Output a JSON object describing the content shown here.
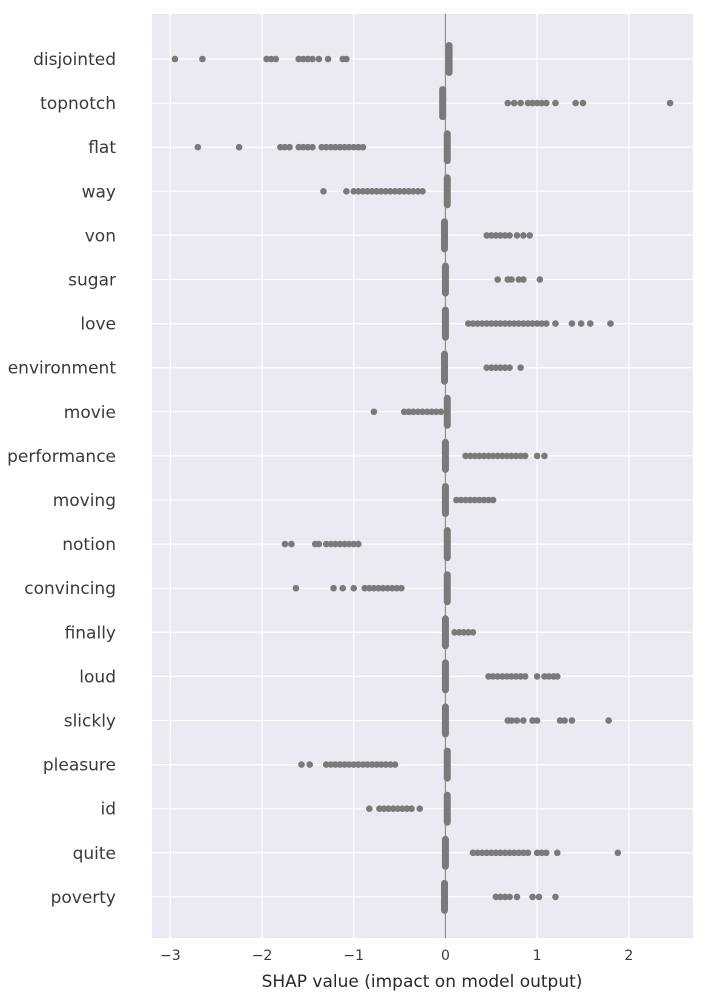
{
  "chart_data": {
    "type": "scatter",
    "subtype": "shap-summary-beeswarm",
    "title": "",
    "xlabel": "SHAP value (impact on model output)",
    "ylabel": "",
    "xlim": [
      -3.2,
      2.7
    ],
    "xticks": [
      -3,
      -2,
      -1,
      0,
      1,
      2
    ],
    "xtick_labels": [
      "−3",
      "−2",
      "−1",
      "0",
      "1",
      "2"
    ],
    "grid": true,
    "legend": "none",
    "colors": {
      "background": "#eaeaf2",
      "grid": "#ffffff",
      "point": "#7a7a7a",
      "zero_line": "#8c8c8c"
    },
    "features": [
      {
        "name": "disjointed",
        "zero": 0.04,
        "points": [
          -2.95,
          -2.65,
          -1.95,
          -1.9,
          -1.85,
          -1.6,
          -1.55,
          -1.5,
          -1.45,
          -1.38,
          -1.28,
          -1.12,
          -1.08
        ]
      },
      {
        "name": "topnotch",
        "zero": -0.03,
        "points": [
          0.68,
          0.75,
          0.82,
          0.9,
          0.95,
          1.0,
          1.05,
          1.1,
          1.2,
          1.42,
          1.5,
          2.45
        ]
      },
      {
        "name": "flat",
        "zero": 0.02,
        "points": [
          -2.7,
          -2.25,
          -1.8,
          -1.75,
          -1.7,
          -1.6,
          -1.55,
          -1.5,
          -1.45,
          -1.35,
          -1.3,
          -1.25,
          -1.2,
          -1.15,
          -1.1,
          -1.05,
          -1.0,
          -0.95,
          -0.9
        ]
      },
      {
        "name": "way",
        "zero": 0.02,
        "points": [
          -1.33,
          -1.08,
          -1.0,
          -0.95,
          -0.9,
          -0.85,
          -0.8,
          -0.75,
          -0.7,
          -0.65,
          -0.6,
          -0.55,
          -0.5,
          -0.45,
          -0.4,
          -0.35,
          -0.3,
          -0.25
        ]
      },
      {
        "name": "von",
        "zero": -0.01,
        "points": [
          0.45,
          0.5,
          0.55,
          0.6,
          0.65,
          0.7,
          0.78,
          0.85,
          0.92
        ]
      },
      {
        "name": "sugar",
        "zero": 0.0,
        "points": [
          0.57,
          0.68,
          0.72,
          0.8,
          0.85,
          1.03
        ]
      },
      {
        "name": "love",
        "zero": 0.0,
        "points": [
          0.25,
          0.3,
          0.35,
          0.4,
          0.45,
          0.5,
          0.55,
          0.6,
          0.65,
          0.7,
          0.75,
          0.8,
          0.85,
          0.9,
          0.95,
          1.0,
          1.05,
          1.1,
          1.2,
          1.38,
          1.48,
          1.58,
          1.8
        ]
      },
      {
        "name": "environment",
        "zero": -0.01,
        "points": [
          0.45,
          0.5,
          0.55,
          0.6,
          0.65,
          0.7,
          0.82
        ]
      },
      {
        "name": "movie",
        "zero": 0.02,
        "points": [
          -0.78,
          -0.45,
          -0.4,
          -0.35,
          -0.3,
          -0.25,
          -0.2,
          -0.15,
          -0.1,
          -0.05
        ]
      },
      {
        "name": "performance",
        "zero": 0.0,
        "points": [
          0.22,
          0.27,
          0.32,
          0.37,
          0.42,
          0.47,
          0.52,
          0.57,
          0.62,
          0.67,
          0.72,
          0.77,
          0.82,
          0.87,
          1.0,
          1.08
        ]
      },
      {
        "name": "moving",
        "zero": 0.0,
        "points": [
          0.12,
          0.17,
          0.22,
          0.27,
          0.32,
          0.37,
          0.42,
          0.47,
          0.52
        ]
      },
      {
        "name": "notion",
        "zero": 0.02,
        "points": [
          -1.75,
          -1.68,
          -1.42,
          -1.38,
          -1.3,
          -1.25,
          -1.2,
          -1.15,
          -1.1,
          -1.05,
          -1.0,
          -0.95
        ]
      },
      {
        "name": "convincing",
        "zero": 0.02,
        "points": [
          -1.63,
          -1.22,
          -1.12,
          -1.0,
          -0.88,
          -0.83,
          -0.78,
          -0.73,
          -0.68,
          -0.63,
          -0.58,
          -0.53,
          -0.48
        ]
      },
      {
        "name": "finally",
        "zero": 0.0,
        "points": [
          0.1,
          0.15,
          0.2,
          0.25,
          0.3
        ]
      },
      {
        "name": "loud",
        "zero": 0.0,
        "points": [
          0.47,
          0.52,
          0.57,
          0.62,
          0.67,
          0.72,
          0.77,
          0.82,
          0.87,
          1.0,
          1.08,
          1.13,
          1.18,
          1.22
        ]
      },
      {
        "name": "slickly",
        "zero": 0.0,
        "points": [
          0.68,
          0.72,
          0.78,
          0.85,
          0.95,
          1.0,
          1.25,
          1.3,
          1.38,
          1.78
        ]
      },
      {
        "name": "pleasure",
        "zero": 0.02,
        "points": [
          -1.57,
          -1.48,
          -1.3,
          -1.25,
          -1.2,
          -1.15,
          -1.1,
          -1.05,
          -1.0,
          -0.95,
          -0.9,
          -0.85,
          -0.8,
          -0.75,
          -0.7,
          -0.65,
          -0.6,
          -0.55
        ]
      },
      {
        "name": "id",
        "zero": 0.02,
        "points": [
          -0.83,
          -0.72,
          -0.67,
          -0.62,
          -0.57,
          -0.52,
          -0.47,
          -0.42,
          -0.37,
          -0.28
        ]
      },
      {
        "name": "quite",
        "zero": 0.0,
        "points": [
          0.3,
          0.35,
          0.4,
          0.45,
          0.5,
          0.55,
          0.6,
          0.65,
          0.7,
          0.75,
          0.8,
          0.85,
          0.9,
          1.0,
          1.05,
          1.1,
          1.22,
          1.88
        ]
      },
      {
        "name": "poverty",
        "zero": -0.01,
        "points": [
          0.55,
          0.6,
          0.65,
          0.7,
          0.78,
          0.95,
          1.02,
          1.2
        ]
      }
    ]
  }
}
